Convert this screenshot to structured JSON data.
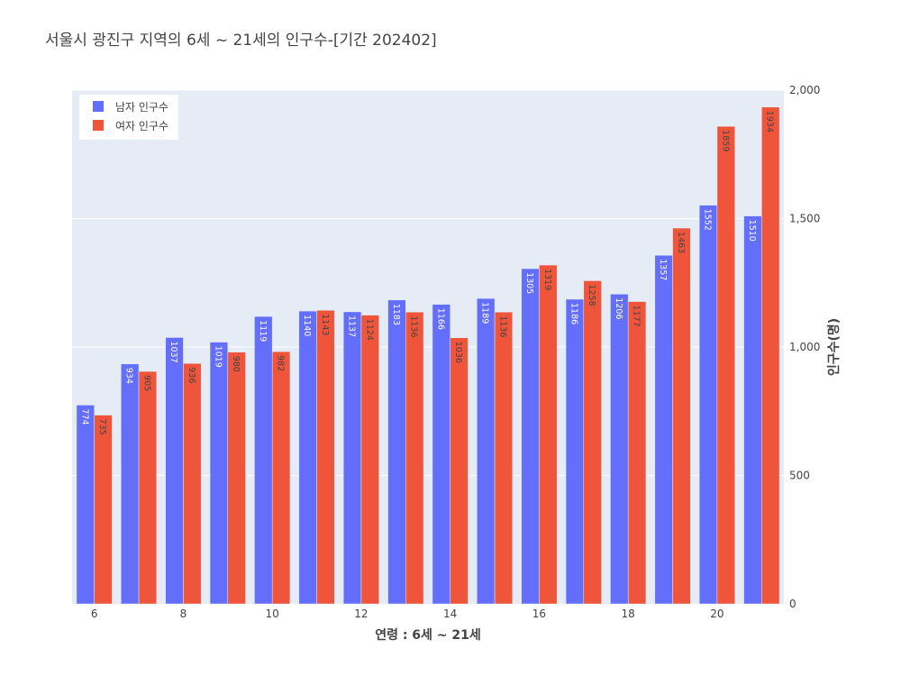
{
  "chart_data": {
    "type": "bar",
    "title": "서울시 광진구 지역의 6세 ~ 21세의 인구수-[기간 202402]",
    "xlabel": "연령 : 6세 ~ 21세",
    "ylabel": "인구수(명)",
    "x": [
      6,
      7,
      8,
      9,
      10,
      11,
      12,
      13,
      14,
      15,
      16,
      17,
      18,
      19,
      20,
      21
    ],
    "x_tick_labels": [
      "6",
      "8",
      "10",
      "12",
      "14",
      "16",
      "18",
      "20"
    ],
    "y_tick_labels": [
      "0",
      "500",
      "1,000",
      "1,500",
      "2,000"
    ],
    "ylim": [
      0,
      2000
    ],
    "y_axis_side": "right",
    "grid": true,
    "legend_position": "top-left",
    "series": [
      {
        "name": "남자 인구수",
        "color": "#636efa",
        "values": [
          774,
          934,
          1037,
          1019,
          1119,
          1140,
          1137,
          1183,
          1166,
          1189,
          1305,
          1186,
          1206,
          1357,
          1552,
          1510
        ]
      },
      {
        "name": "여자 인구수",
        "color": "#ef553b",
        "values": [
          735,
          905,
          936,
          980,
          982,
          1143,
          1124,
          1136,
          1036,
          1136,
          1319,
          1258,
          1177,
          1463,
          1859,
          1934
        ]
      }
    ]
  }
}
